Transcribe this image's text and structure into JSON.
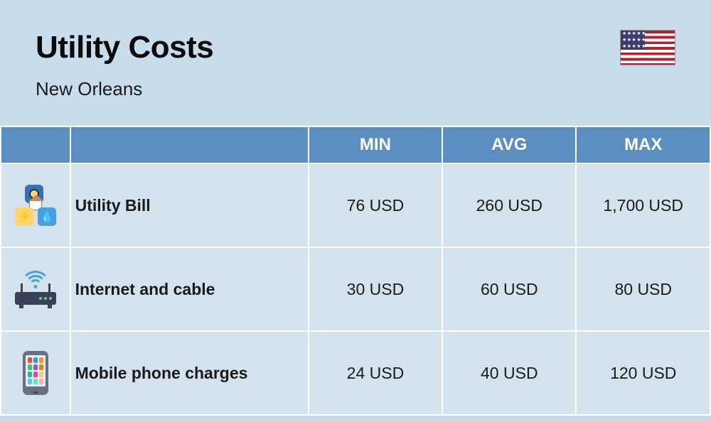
{
  "header": {
    "title": "Utility Costs",
    "subtitle": "New Orleans"
  },
  "table": {
    "type": "table",
    "header_bg": "#5b8fbf",
    "header_text_color": "#ffffff",
    "cell_bg": "#d4e2ee",
    "border_color": "#ffffff",
    "columns": [
      "",
      "",
      "MIN",
      "AVG",
      "MAX"
    ],
    "rows": [
      {
        "label": "Utility Bill",
        "min": "76 USD",
        "avg": "260 USD",
        "max": "1,700 USD"
      },
      {
        "label": "Internet and cable",
        "min": "30 USD",
        "avg": "60 USD",
        "max": "80 USD"
      },
      {
        "label": "Mobile phone charges",
        "min": "24 USD",
        "avg": "40 USD",
        "max": "120 USD"
      }
    ]
  },
  "background_color": "#c9dceb"
}
